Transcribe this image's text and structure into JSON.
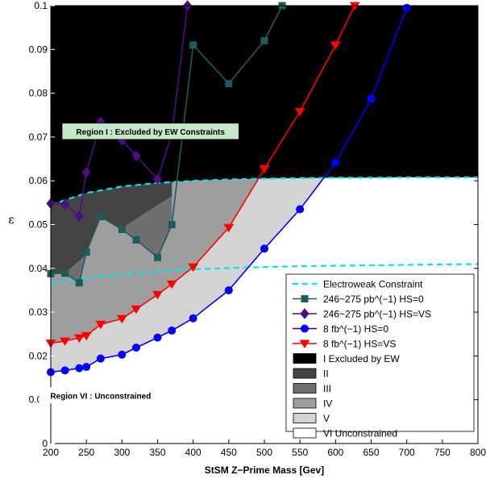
{
  "chart_data": {
    "type": "line",
    "xlabel": "StSM Z−Prime Mass [Gev]",
    "ylabel": "ε",
    "xlim": [
      200,
      800
    ],
    "ylim": [
      0,
      0.1
    ],
    "xticks": [
      200,
      250,
      300,
      350,
      400,
      450,
      500,
      550,
      600,
      650,
      700,
      750,
      800
    ],
    "yticks": [
      0,
      0.01,
      0.02,
      0.03,
      0.04,
      0.05,
      0.06,
      0.07,
      0.08,
      0.09,
      0.1
    ],
    "xtick_labels": [
      "200",
      "250",
      "300",
      "350",
      "400",
      "450",
      "500",
      "550",
      "600",
      "650",
      "700",
      "750",
      "800"
    ],
    "ytick_labels": [
      "0",
      "0.01",
      "0.02",
      "0.03",
      "0.04",
      "0.05",
      "0.06",
      "0.07",
      "0.08",
      "0.09",
      "0.1"
    ],
    "grid": false,
    "legend_position": "bottom-right",
    "series": [
      {
        "name": "Electroweak Constraint",
        "style": "dashed",
        "color": "#00e5ee",
        "x": [
          200,
          250,
          300,
          350,
          400,
          450,
          500,
          550,
          600,
          650,
          700,
          750,
          800
        ],
        "y": [
          0.0545,
          0.0572,
          0.0587,
          0.0595,
          0.06,
          0.0603,
          0.0605,
          0.0606,
          0.0607,
          0.0607,
          0.0608,
          0.0608,
          0.0608
        ]
      },
      {
        "name": "Electroweak Constraint (lower)",
        "style": "dashed",
        "color": "#00e5ee",
        "x": [
          200,
          250,
          300,
          350,
          400,
          450,
          500,
          550,
          600,
          650,
          700,
          750,
          800
        ],
        "y": [
          0.0365,
          0.0378,
          0.0387,
          0.0393,
          0.0398,
          0.0401,
          0.0403,
          0.0405,
          0.0406,
          0.0407,
          0.0408,
          0.0409,
          0.041
        ]
      },
      {
        "name": "246~275 pb^(−1) HS=0",
        "marker": "square",
        "color": "#1e5b5b",
        "x": [
          200,
          220,
          240,
          250,
          270,
          300,
          320,
          350,
          370,
          400,
          450,
          500,
          525
        ],
        "y": [
          0.0388,
          0.0389,
          0.0367,
          0.0437,
          0.0518,
          0.0489,
          0.0465,
          0.0425,
          0.05,
          0.091,
          0.0822,
          0.092,
          0.1
        ]
      },
      {
        "name": "246~275 pb^(−1) HS=VS",
        "marker": "diamond",
        "color": "#4b0f82",
        "x": [
          200,
          220,
          240,
          250,
          270,
          300,
          320,
          350,
          370,
          392
        ],
        "y": [
          0.0548,
          0.0546,
          0.0519,
          0.0619,
          0.0734,
          0.0693,
          0.0657,
          0.0604,
          0.0707,
          0.1
        ]
      },
      {
        "name": "8 fb^(−1) HS=0",
        "marker": "circle",
        "color": "#0000ff",
        "x": [
          200,
          220,
          240,
          250,
          270,
          300,
          320,
          350,
          370,
          400,
          450,
          500,
          550,
          600,
          650,
          700
        ],
        "y": [
          0.0163,
          0.0167,
          0.0172,
          0.0175,
          0.0194,
          0.0203,
          0.0219,
          0.0242,
          0.0258,
          0.0286,
          0.035,
          0.0445,
          0.0535,
          0.0642,
          0.0787,
          0.0995
        ]
      },
      {
        "name": "8 fb^(−1) HS=VS",
        "marker": "triangle-down",
        "color": "#ff0000",
        "x": [
          200,
          220,
          240,
          250,
          270,
          300,
          320,
          350,
          370,
          400,
          450,
          500,
          550,
          600,
          627
        ],
        "y": [
          0.0229,
          0.0234,
          0.0241,
          0.0246,
          0.0272,
          0.0285,
          0.0307,
          0.034,
          0.0364,
          0.0403,
          0.0493,
          0.0627,
          0.0758,
          0.091,
          0.1
        ]
      }
    ],
    "regions": [
      {
        "name": "I Excluded by EW",
        "color": "#000000"
      },
      {
        "name": "II",
        "color": "#444444"
      },
      {
        "name": "III",
        "color": "#6f6f6f"
      },
      {
        "name": "IV",
        "color": "#9e9e9e"
      },
      {
        "name": "V",
        "color": "#d3d3d3"
      },
      {
        "name": "VI Unconstrained",
        "color": "#ffffff"
      }
    ],
    "annotations": [
      {
        "text": "Region I : Excluded by EW Constraints",
        "x": 340,
        "y": 0.0713,
        "box_color": "#c6e8c6"
      },
      {
        "text": "Region VI : Unconstrained",
        "x": 270,
        "y": 0.011,
        "box_color": "#ffffff"
      }
    ]
  }
}
